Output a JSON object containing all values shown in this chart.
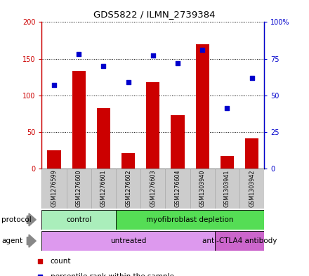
{
  "title": "GDS5822 / ILMN_2739384",
  "samples": [
    "GSM1276599",
    "GSM1276600",
    "GSM1276601",
    "GSM1276602",
    "GSM1276603",
    "GSM1276604",
    "GSM1303940",
    "GSM1303941",
    "GSM1303942"
  ],
  "counts": [
    25,
    133,
    82,
    21,
    118,
    73,
    170,
    17,
    41
  ],
  "percentiles": [
    57,
    78,
    70,
    59,
    77,
    72,
    81,
    41,
    62
  ],
  "ylim_left": [
    0,
    200
  ],
  "ylim_right": [
    0,
    100
  ],
  "yticks_left": [
    0,
    50,
    100,
    150,
    200
  ],
  "yticks_right": [
    0,
    25,
    50,
    75,
    100
  ],
  "ytick_labels_left": [
    "0",
    "50",
    "100",
    "150",
    "200"
  ],
  "ytick_labels_right": [
    "0",
    "25",
    "50",
    "75",
    "100%"
  ],
  "bar_color": "#cc0000",
  "dot_color": "#0000cc",
  "protocol_groups": [
    {
      "label": "control",
      "start": 0,
      "end": 3,
      "color": "#aaeebb"
    },
    {
      "label": "myofibroblast depletion",
      "start": 3,
      "end": 9,
      "color": "#55dd55"
    }
  ],
  "agent_groups": [
    {
      "label": "untreated",
      "start": 0,
      "end": 7,
      "color": "#dd99ee"
    },
    {
      "label": "anti-CTLA4 antibody",
      "start": 7,
      "end": 9,
      "color": "#cc66cc"
    }
  ],
  "legend_count_color": "#cc0000",
  "legend_percentile_color": "#0000cc",
  "sample_box_color": "#cccccc",
  "sample_box_edge": "#aaaaaa"
}
